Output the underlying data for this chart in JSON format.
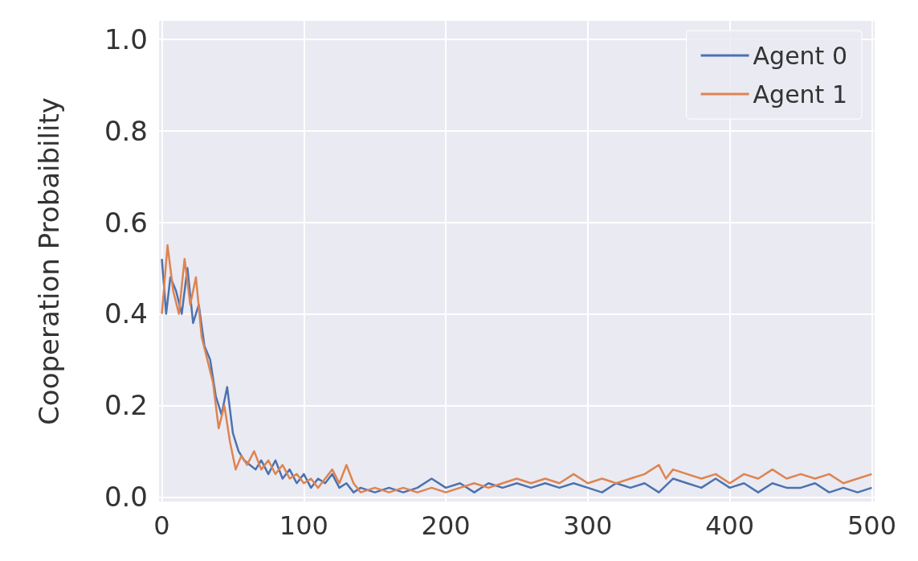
{
  "chart_data": {
    "type": "line",
    "ylabel": "Cooperation Probaibility",
    "xlim": [
      -2,
      502
    ],
    "ylim": [
      -0.01,
      1.04
    ],
    "xticks": [
      0,
      100,
      200,
      300,
      400,
      500
    ],
    "yticks": [
      {
        "value": 0,
        "label": "0.0"
      },
      0.2,
      0.4,
      0.6,
      0.8,
      {
        "value": 1,
        "label": "1.0"
      }
    ],
    "grid": true,
    "legend": "top right",
    "series": [
      {
        "name": "Agent 0",
        "color": "#4c72b0",
        "x": [
          0,
          3,
          6,
          10,
          14,
          18,
          22,
          26,
          30,
          34,
          38,
          42,
          46,
          50,
          54,
          58,
          62,
          66,
          70,
          75,
          80,
          85,
          90,
          95,
          100,
          105,
          110,
          115,
          120,
          125,
          130,
          135,
          140,
          150,
          160,
          170,
          180,
          190,
          200,
          210,
          220,
          230,
          240,
          250,
          260,
          270,
          280,
          290,
          300,
          310,
          320,
          330,
          340,
          350,
          360,
          370,
          380,
          390,
          400,
          410,
          420,
          430,
          440,
          450,
          460,
          470,
          480,
          490,
          500
        ],
        "values": [
          0.52,
          0.4,
          0.48,
          0.45,
          0.4,
          0.5,
          0.38,
          0.42,
          0.33,
          0.3,
          0.22,
          0.18,
          0.24,
          0.14,
          0.1,
          0.08,
          0.07,
          0.06,
          0.08,
          0.05,
          0.08,
          0.04,
          0.06,
          0.03,
          0.05,
          0.02,
          0.04,
          0.03,
          0.05,
          0.02,
          0.03,
          0.01,
          0.02,
          0.01,
          0.02,
          0.01,
          0.02,
          0.04,
          0.02,
          0.03,
          0.01,
          0.03,
          0.02,
          0.03,
          0.02,
          0.03,
          0.02,
          0.03,
          0.02,
          0.01,
          0.03,
          0.02,
          0.03,
          0.01,
          0.04,
          0.03,
          0.02,
          0.04,
          0.02,
          0.03,
          0.01,
          0.03,
          0.02,
          0.02,
          0.03,
          0.01,
          0.02,
          0.01,
          0.02
        ]
      },
      {
        "name": "Agent 1",
        "color": "#dd8452",
        "x": [
          0,
          4,
          8,
          12,
          16,
          20,
          24,
          28,
          32,
          36,
          40,
          44,
          48,
          52,
          56,
          60,
          65,
          70,
          75,
          80,
          85,
          90,
          95,
          100,
          105,
          110,
          115,
          120,
          125,
          130,
          135,
          140,
          150,
          160,
          170,
          180,
          190,
          200,
          210,
          220,
          230,
          240,
          250,
          260,
          270,
          280,
          290,
          300,
          310,
          320,
          330,
          340,
          350,
          355,
          360,
          370,
          380,
          390,
          400,
          410,
          420,
          430,
          440,
          450,
          460,
          470,
          480,
          490,
          500
        ],
        "values": [
          0.4,
          0.55,
          0.45,
          0.4,
          0.52,
          0.42,
          0.48,
          0.35,
          0.3,
          0.25,
          0.15,
          0.2,
          0.12,
          0.06,
          0.09,
          0.07,
          0.1,
          0.06,
          0.08,
          0.05,
          0.07,
          0.04,
          0.05,
          0.03,
          0.04,
          0.02,
          0.04,
          0.06,
          0.03,
          0.07,
          0.03,
          0.01,
          0.02,
          0.01,
          0.02,
          0.01,
          0.02,
          0.01,
          0.02,
          0.03,
          0.02,
          0.03,
          0.04,
          0.03,
          0.04,
          0.03,
          0.05,
          0.03,
          0.04,
          0.03,
          0.04,
          0.05,
          0.07,
          0.04,
          0.06,
          0.05,
          0.04,
          0.05,
          0.03,
          0.05,
          0.04,
          0.06,
          0.04,
          0.05,
          0.04,
          0.05,
          0.03,
          0.04,
          0.05
        ]
      }
    ]
  }
}
